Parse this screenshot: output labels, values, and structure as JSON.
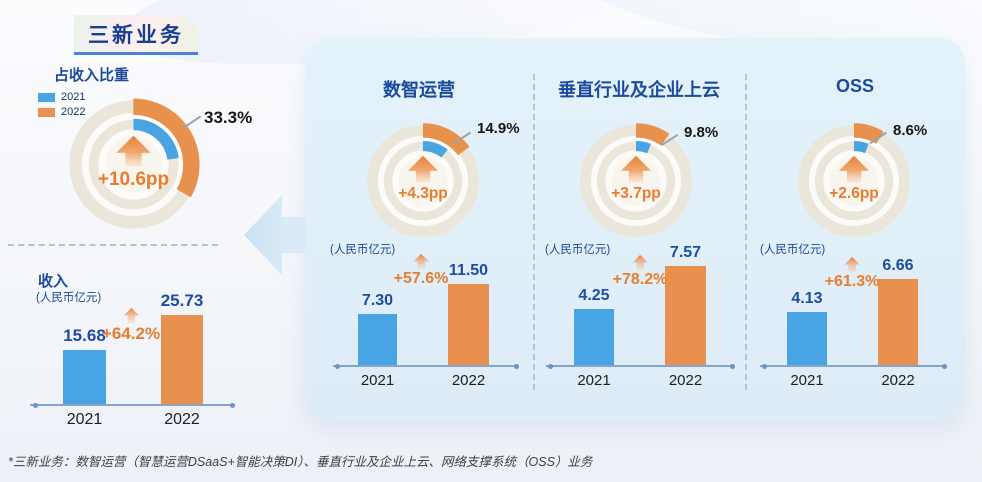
{
  "page": {
    "title": "三新业务",
    "footnote": "*三新业务：数智运营（智慧运营DSaaS+智能决策DI）、垂直行业及企业上云、网络支撑系统（OSS）业务"
  },
  "colors": {
    "blue": "#49a4e3",
    "orange": "#e8914f",
    "navy": "#1b4a9b",
    "orange_text": "#e87c2f",
    "ring_bg": "#ebe6da",
    "panel_bg": "#e1eff8"
  },
  "left": {
    "share_heading": "占收入比重",
    "revenue_heading": "收入",
    "revenue_unit": "(人民币亿元)",
    "legend": [
      {
        "label": "2021",
        "color": "#49a4e3"
      },
      {
        "label": "2022",
        "color": "#e8914f"
      }
    ]
  },
  "sections": [
    {
      "title": "数智运营",
      "unit": "(人民币亿元)"
    },
    {
      "title": "垂直行业及企业上云",
      "unit": "(人民币亿元)"
    },
    {
      "title": "OSS",
      "unit": "(人民币亿元)"
    }
  ],
  "chart_data": [
    {
      "id": "total_share",
      "type": "donut",
      "title": "占收入比重",
      "series": [
        {
          "name": "2021",
          "value": 22.7
        },
        {
          "name": "2022",
          "value": 33.3
        }
      ],
      "label": "33.3%",
      "delta_pp": "+10.6pp"
    },
    {
      "id": "total_revenue",
      "type": "bar",
      "title": "收入",
      "unit": "(人民币亿元)",
      "categories": [
        "2021",
        "2022"
      ],
      "values": [
        15.68,
        25.73
      ],
      "growth": "+64.2%"
    },
    {
      "id": "dsaas_share",
      "type": "donut",
      "title": "数智运营",
      "series": [
        {
          "name": "2021",
          "value": 10.6
        },
        {
          "name": "2022",
          "value": 14.9
        }
      ],
      "label": "14.9%",
      "delta_pp": "+4.3pp"
    },
    {
      "id": "dsaas_revenue",
      "type": "bar",
      "title": "数智运营",
      "unit": "(人民币亿元)",
      "categories": [
        "2021",
        "2022"
      ],
      "values": [
        7.3,
        11.5
      ],
      "growth": "+57.6%"
    },
    {
      "id": "vertical_share",
      "type": "donut",
      "title": "垂直行业及企业上云",
      "series": [
        {
          "name": "2021",
          "value": 6.1
        },
        {
          "name": "2022",
          "value": 9.8
        }
      ],
      "label": "9.8%",
      "delta_pp": "+3.7pp"
    },
    {
      "id": "vertical_revenue",
      "type": "bar",
      "title": "垂直行业及企业上云",
      "unit": "(人民币亿元)",
      "categories": [
        "2021",
        "2022"
      ],
      "values": [
        4.25,
        7.57
      ],
      "growth": "+78.2%"
    },
    {
      "id": "oss_share",
      "type": "donut",
      "title": "OSS",
      "series": [
        {
          "name": "2021",
          "value": 6.0
        },
        {
          "name": "2022",
          "value": 8.6
        }
      ],
      "label": "8.6%",
      "delta_pp": "+2.6pp"
    },
    {
      "id": "oss_revenue",
      "type": "bar",
      "title": "OSS",
      "unit": "(人民币亿元)",
      "categories": [
        "2021",
        "2022"
      ],
      "values": [
        4.13,
        6.66
      ],
      "growth": "+61.3%"
    }
  ]
}
